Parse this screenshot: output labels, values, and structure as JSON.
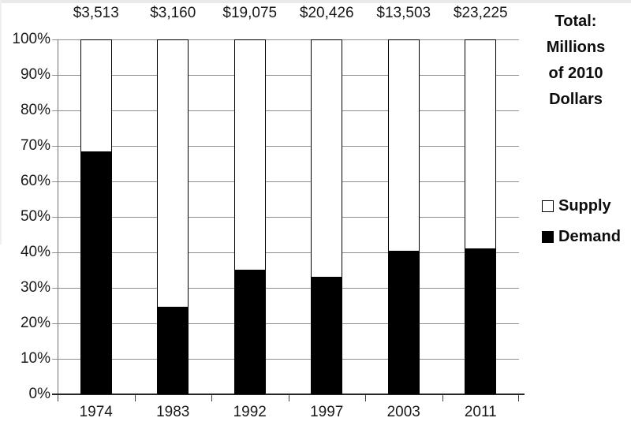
{
  "chart_data": {
    "type": "bar",
    "subtype": "stacked-100-percent-column",
    "title": "",
    "categories": [
      "1974",
      "1983",
      "1992",
      "1997",
      "2003",
      "2011"
    ],
    "series": [
      {
        "name": "Demand",
        "color": "#000000",
        "values_percent": [
          68.5,
          24.5,
          35,
          33,
          40.5,
          41
        ]
      },
      {
        "name": "Supply",
        "color": "#ffffff",
        "values_percent": [
          31.5,
          75.5,
          65,
          67,
          59.5,
          59
        ]
      }
    ],
    "totals": [
      "$3,513",
      "$3,160",
      "$19,075",
      "$20,426",
      "$13,503",
      "$23,225"
    ],
    "y_axis": {
      "min": 0,
      "max": 100,
      "step": 10,
      "ticks": [
        "100%",
        "90%",
        "80%",
        "70%",
        "60%",
        "50%",
        "40%",
        "30%",
        "20%",
        "10%",
        "0%"
      ],
      "grid": true
    },
    "side_note_lines": [
      "Total:",
      "Millions",
      "of 2010",
      "Dollars"
    ],
    "legend": {
      "position": "right",
      "entries": [
        {
          "label": "Supply",
          "fill": "#ffffff"
        },
        {
          "label": "Demand",
          "fill": "#000000"
        }
      ]
    },
    "colors": {
      "gridline": "#8e8e8e",
      "axis": "#262626",
      "bar_border": "#000000",
      "background": "#ffffff"
    }
  }
}
